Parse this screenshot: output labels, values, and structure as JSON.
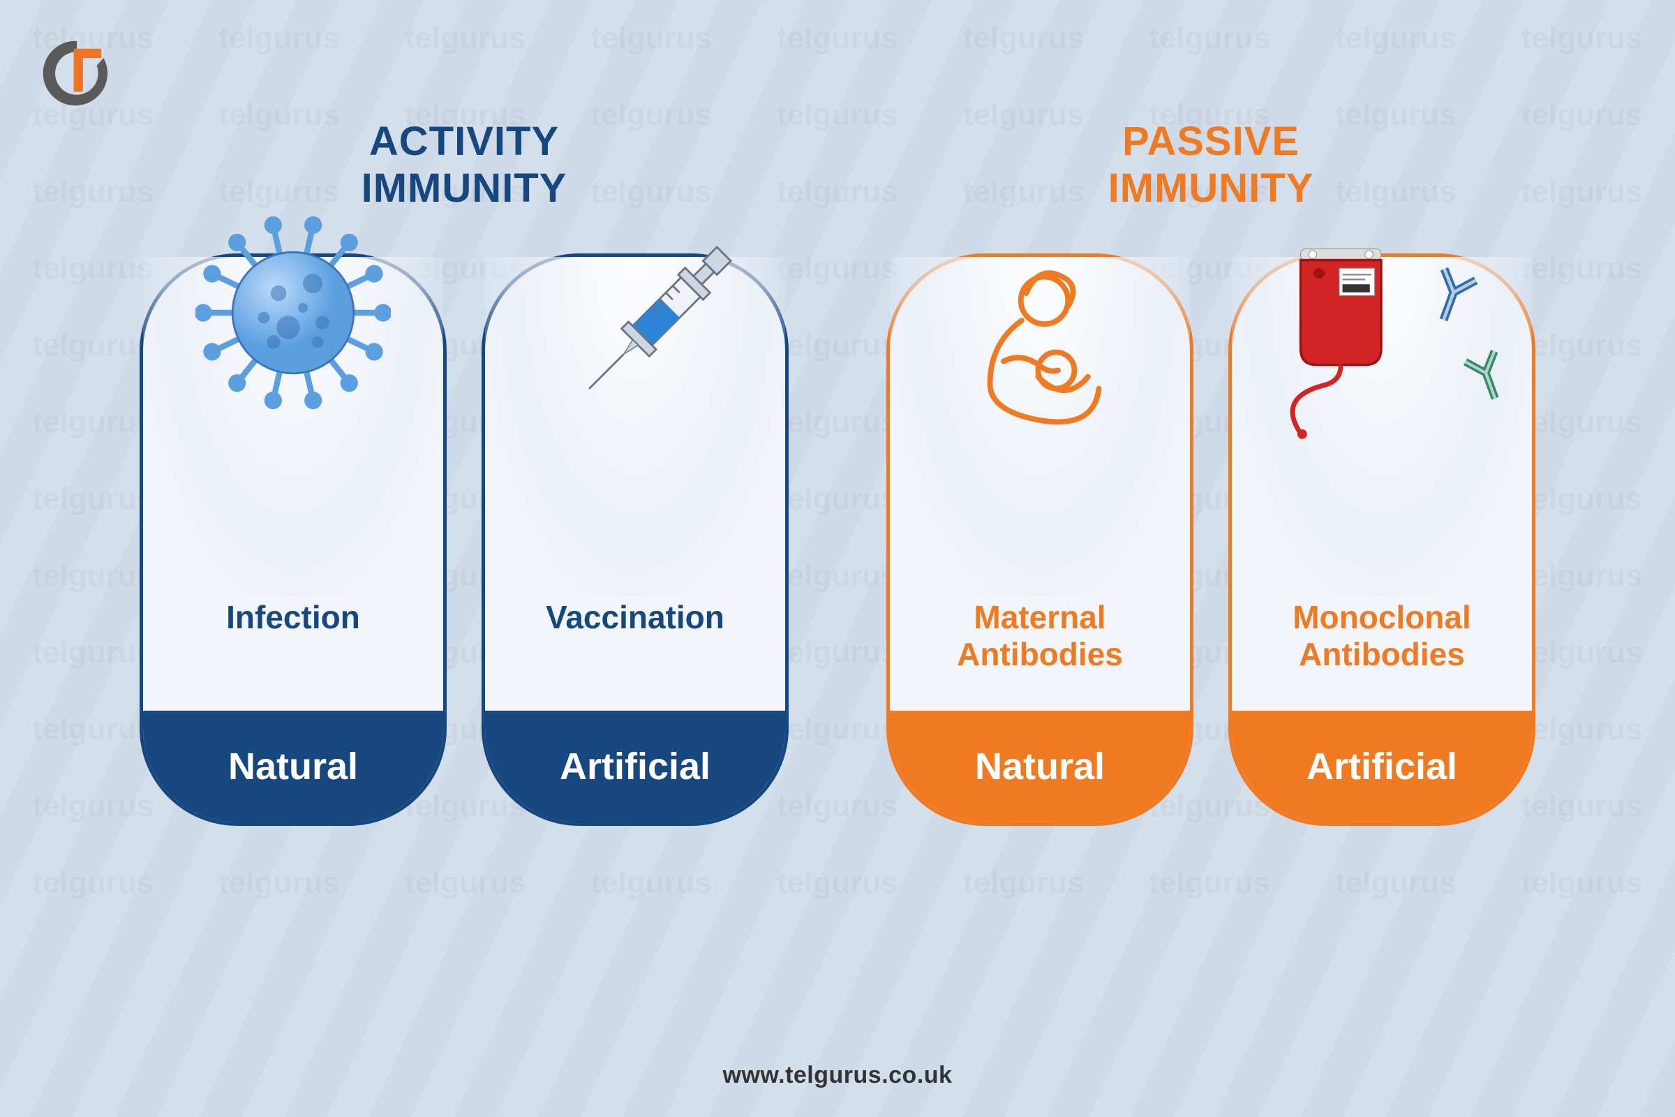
{
  "background": {
    "stripe_color_1": "#d4dfec",
    "stripe_color_2": "#cfdae8"
  },
  "watermark_text": "telgurus",
  "logo": {
    "outer_color": "#5a5a5a",
    "inner_color": "#ee7322"
  },
  "footer_url": "www.telgurus.co.uk",
  "sections": [
    {
      "title": "ACTIVITY\nIMMUNITY",
      "title_color": "#16477f",
      "border_color": "#16477f",
      "text_color": "#16477f",
      "footer_bg": "#16477f",
      "cards": [
        {
          "icon": "virus",
          "body": "Infection",
          "footer": "Natural"
        },
        {
          "icon": "syringe",
          "body": "Vaccination",
          "footer": "Artificial"
        }
      ]
    },
    {
      "title": "PASSIVE\nIMMUNITY",
      "title_color": "#ef7a22",
      "border_color": "#ef7a22",
      "text_color": "#ef7a22",
      "footer_bg": "#ef7a22",
      "cards": [
        {
          "icon": "mother",
          "body": "Maternal\nAntibodies",
          "footer": "Natural"
        },
        {
          "icon": "bloodbag",
          "body": "Monoclonal\nAntibodies",
          "footer": "Artificial"
        }
      ]
    }
  ],
  "icons": {
    "virus_color": "#5b9fe0",
    "virus_shadow": "#3b74b8",
    "syringe_body": "#cdd7e3",
    "syringe_liquid": "#2d84d6",
    "syringe_outline": "#6b7280",
    "mother_stroke": "#ef7a22",
    "bloodbag_fill": "#d22424",
    "bloodbag_dark": "#9e1212",
    "antibody_a": "#2d6fae",
    "antibody_b": "#2f8f58"
  }
}
